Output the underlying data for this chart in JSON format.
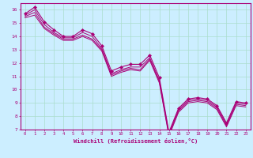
{
  "xlabel": "Windchill (Refroidissement éolien,°C)",
  "bg_color": "#cceeff",
  "line_color": "#aa0077",
  "grid_color": "#aaddcc",
  "x_hours": [
    0,
    1,
    2,
    3,
    4,
    5,
    6,
    7,
    8,
    9,
    10,
    11,
    12,
    13,
    14,
    15,
    16,
    17,
    18,
    19,
    20,
    21,
    22,
    23
  ],
  "series": [
    [
      15.7,
      16.2,
      15.1,
      14.5,
      14.0,
      14.0,
      14.5,
      14.2,
      13.3,
      11.4,
      11.7,
      11.9,
      11.9,
      12.6,
      10.9,
      6.8,
      8.6,
      9.3,
      9.4,
      9.3,
      8.8,
      7.5,
      9.1,
      9.0
    ],
    [
      15.6,
      16.0,
      14.9,
      14.3,
      13.9,
      13.9,
      14.3,
      14.0,
      13.1,
      11.2,
      11.5,
      11.7,
      11.7,
      12.4,
      10.7,
      6.7,
      8.5,
      9.2,
      9.3,
      9.2,
      8.7,
      7.4,
      9.0,
      8.9
    ],
    [
      15.5,
      15.8,
      14.7,
      14.2,
      13.8,
      13.8,
      14.1,
      13.8,
      13.0,
      11.1,
      11.4,
      11.6,
      11.5,
      12.3,
      10.6,
      6.6,
      8.4,
      9.1,
      9.2,
      9.1,
      8.6,
      7.3,
      8.9,
      8.8
    ],
    [
      15.4,
      15.6,
      14.6,
      14.1,
      13.7,
      13.7,
      14.0,
      13.7,
      12.9,
      11.0,
      11.3,
      11.5,
      11.4,
      12.2,
      10.5,
      6.5,
      8.3,
      9.0,
      9.1,
      9.0,
      8.5,
      7.2,
      8.8,
      8.7
    ]
  ],
  "ylim": [
    7,
    16.5
  ],
  "yticks": [
    7,
    8,
    9,
    10,
    11,
    12,
    13,
    14,
    15,
    16
  ],
  "xlim": [
    -0.5,
    23.5
  ],
  "xticks": [
    0,
    1,
    2,
    3,
    4,
    5,
    6,
    7,
    8,
    9,
    10,
    11,
    12,
    13,
    14,
    15,
    16,
    17,
    18,
    19,
    20,
    21,
    22,
    23
  ]
}
